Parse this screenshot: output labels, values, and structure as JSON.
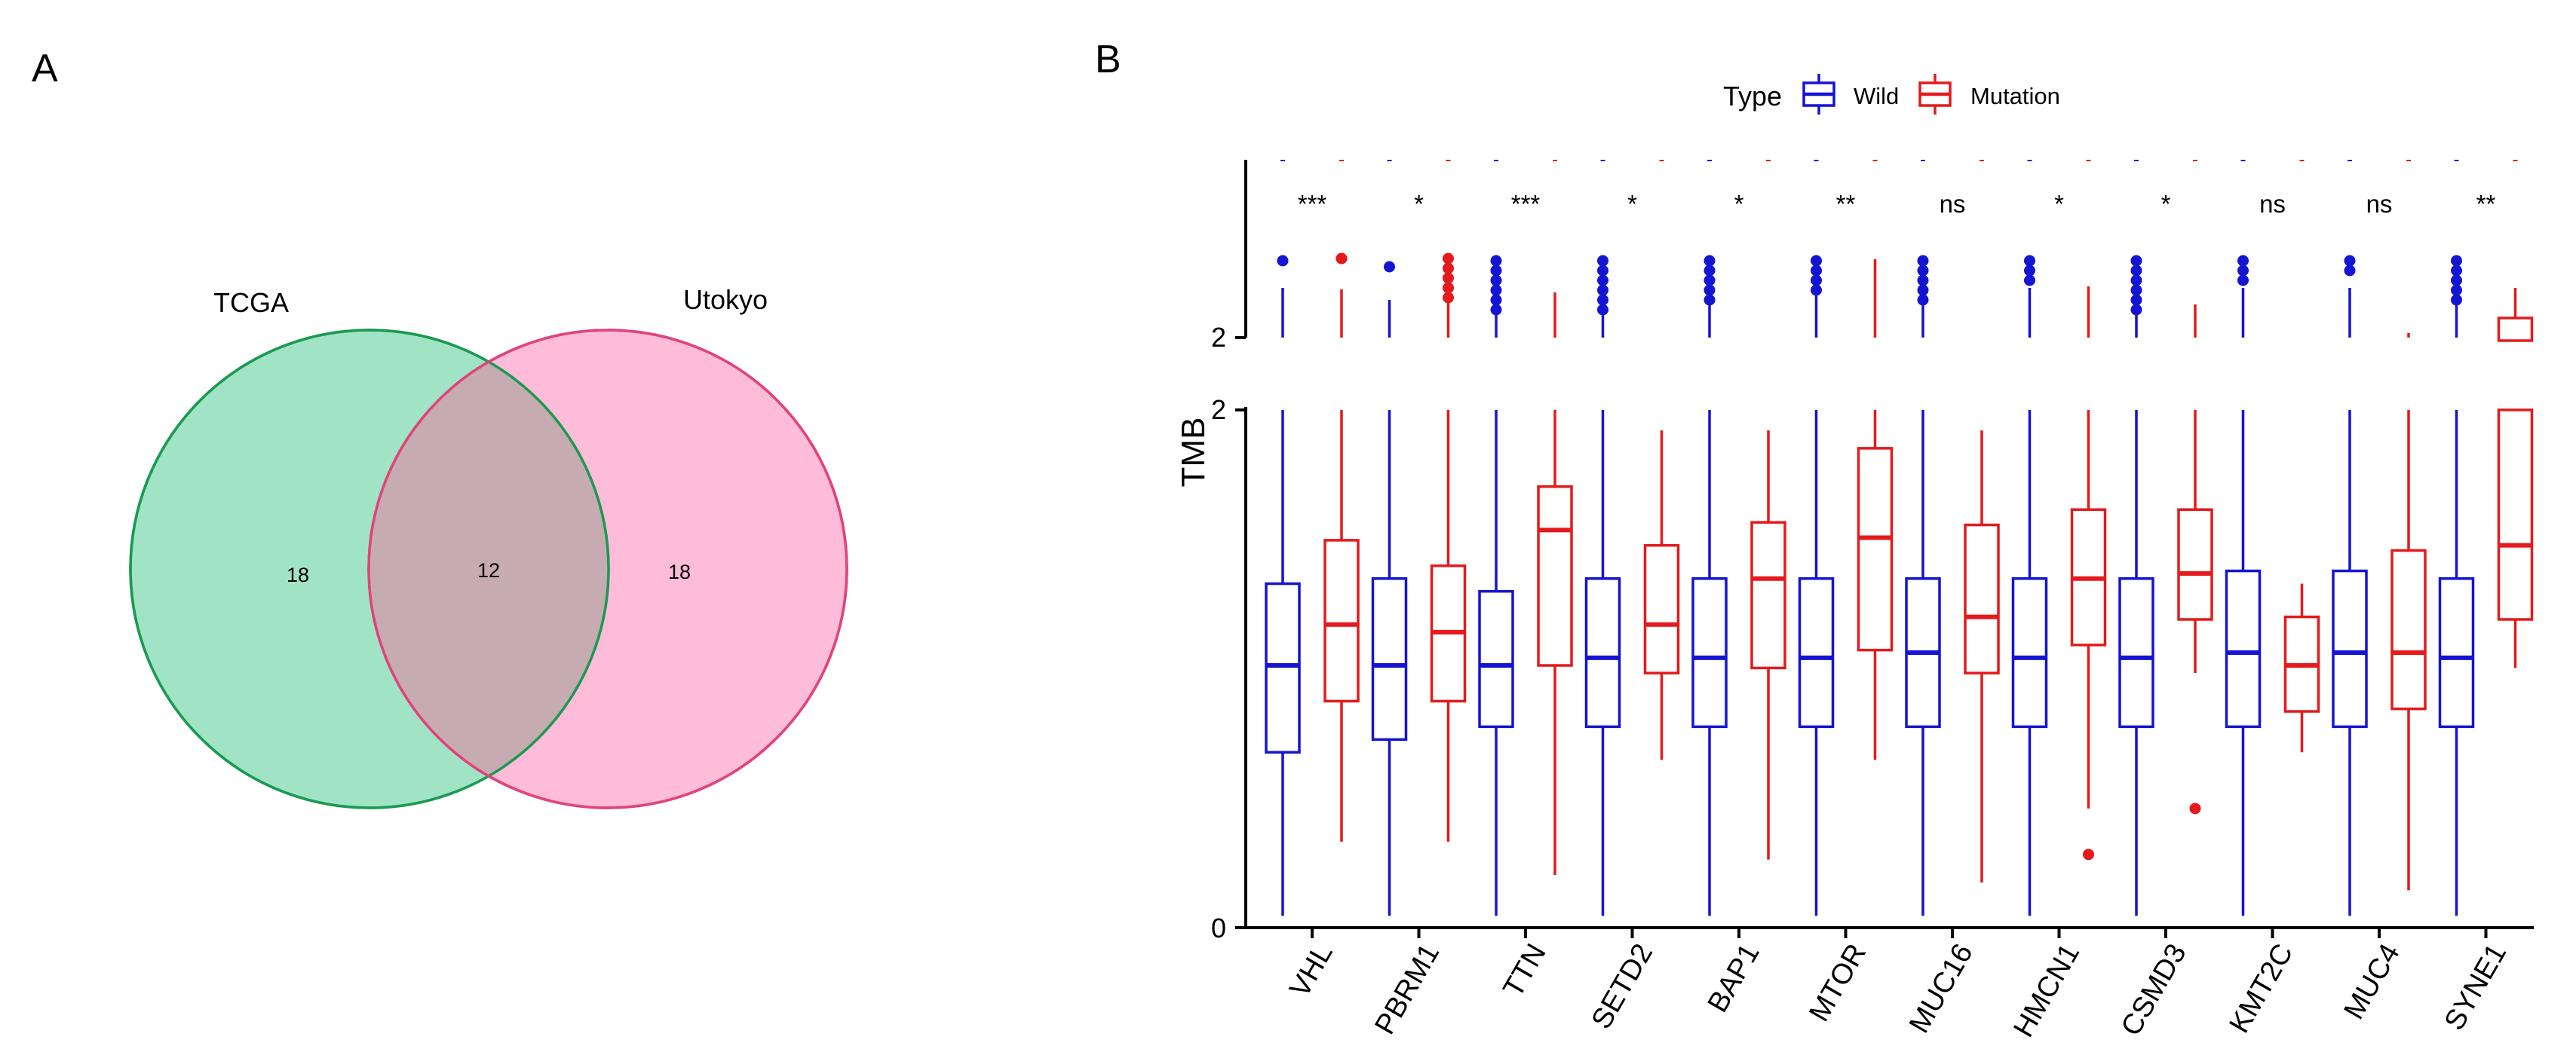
{
  "panel_a": {
    "label": "A",
    "chart_data": {
      "type": "venn",
      "sets": [
        {
          "name": "TCGA",
          "only": 18,
          "color": "#2ec27e",
          "stroke": "#1a9a52"
        },
        {
          "name": "Utokyo",
          "only": 18,
          "color": "#ff8fbf",
          "stroke": "#e0447a"
        }
      ],
      "overlap": 12
    }
  },
  "panel_b": {
    "label": "B",
    "chart_data": {
      "type": "boxplot",
      "ylabel": "TMB",
      "legend": {
        "title": "Type",
        "entries": [
          "Wild",
          "Mutation"
        ],
        "position": "top"
      },
      "colors": {
        "Wild": "#1414d2",
        "Mutation": "#e41a1c"
      },
      "axis": {
        "main_ylim": [
          0,
          2
        ],
        "main_ticks": [
          "0",
          "2"
        ],
        "upper_ticks": [
          "2"
        ],
        "broken": true
      },
      "categories": [
        "VHL",
        "PBRM1",
        "TTN",
        "SETD2",
        "BAP1",
        "MTOR",
        "MUC16",
        "HMCN1",
        "CSMD3",
        "KMT2C",
        "MUC4",
        "SYNE1"
      ],
      "significance": [
        "***",
        "*",
        "***",
        "*",
        "*",
        "**",
        "ns",
        "*",
        "*",
        "ns",
        "ns",
        "**"
      ],
      "series": [
        {
          "name": "Wild",
          "boxes": [
            {
              "whislo": 0.02,
              "q1": 0.66,
              "med": 1.0,
              "q3": 1.32,
              "whishi": 2.0
            },
            {
              "whislo": 0.02,
              "q1": 0.71,
              "med": 1.0,
              "q3": 1.34,
              "whishi": 2.0
            },
            {
              "whislo": 0.02,
              "q1": 0.76,
              "med": 1.0,
              "q3": 1.29,
              "whishi": 2.0
            },
            {
              "whislo": 0.02,
              "q1": 0.76,
              "med": 1.03,
              "q3": 1.34,
              "whishi": 2.0
            },
            {
              "whislo": 0.02,
              "q1": 0.76,
              "med": 1.03,
              "q3": 1.34,
              "whishi": 2.0
            },
            {
              "whislo": 0.02,
              "q1": 0.76,
              "med": 1.03,
              "q3": 1.34,
              "whishi": 2.0
            },
            {
              "whislo": 0.02,
              "q1": 0.76,
              "med": 1.05,
              "q3": 1.34,
              "whishi": 2.0
            },
            {
              "whislo": 0.02,
              "q1": 0.76,
              "med": 1.03,
              "q3": 1.34,
              "whishi": 2.0
            },
            {
              "whislo": 0.02,
              "q1": 0.76,
              "med": 1.03,
              "q3": 1.34,
              "whishi": 2.0
            },
            {
              "whislo": 0.02,
              "q1": 0.76,
              "med": 1.05,
              "q3": 1.37,
              "whishi": 2.0
            },
            {
              "whislo": 0.02,
              "q1": 0.76,
              "med": 1.05,
              "q3": 1.37,
              "whishi": 2.0
            },
            {
              "whislo": 0.02,
              "q1": 0.76,
              "med": 1.03,
              "q3": 1.34,
              "whishi": 2.0
            }
          ]
        },
        {
          "name": "Mutation",
          "boxes": [
            {
              "whislo": 0.31,
              "q1": 0.86,
              "med": 1.16,
              "q3": 1.49,
              "whishi": 2.0
            },
            {
              "whislo": 0.31,
              "q1": 0.86,
              "med": 1.13,
              "q3": 1.39,
              "whishi": 2.0
            },
            {
              "whislo": 0.18,
              "q1": 1.0,
              "med": 1.53,
              "q3": 1.7,
              "whishi": 2.0
            },
            {
              "whislo": 0.63,
              "q1": 0.97,
              "med": 1.16,
              "q3": 1.47,
              "whishi": 1.92
            },
            {
              "whislo": 0.24,
              "q1": 0.99,
              "med": 1.34,
              "q3": 1.56,
              "whishi": 1.92
            },
            {
              "whislo": 0.63,
              "q1": 1.06,
              "med": 1.5,
              "q3": 1.85,
              "whishi": 2.0
            },
            {
              "whislo": 0.15,
              "q1": 0.97,
              "med": 1.19,
              "q3": 1.55,
              "whishi": 1.92
            },
            {
              "whislo": 0.44,
              "q1": 1.08,
              "med": 1.34,
              "q3": 1.61,
              "whishi": 2.0
            },
            {
              "whislo": 0.97,
              "q1": 1.18,
              "med": 1.36,
              "q3": 1.61,
              "whishi": 2.0
            },
            {
              "whislo": 0.66,
              "q1": 0.82,
              "med": 1.0,
              "q3": 1.19,
              "whishi": 1.32
            },
            {
              "whislo": 0.12,
              "q1": 0.83,
              "med": 1.05,
              "q3": 1.45,
              "whishi": 2.0
            },
            {
              "whislo": 0.99,
              "q1": 1.18,
              "med": 1.47,
              "q3": 2.0,
              "whishi": 2.0
            }
          ]
        }
      ],
      "outliers_main": [
        {
          "category": "HMCN1",
          "series": "Mutation",
          "value": 0.26
        },
        {
          "category": "CSMD3",
          "series": "Mutation",
          "value": 0.44
        }
      ]
    }
  }
}
